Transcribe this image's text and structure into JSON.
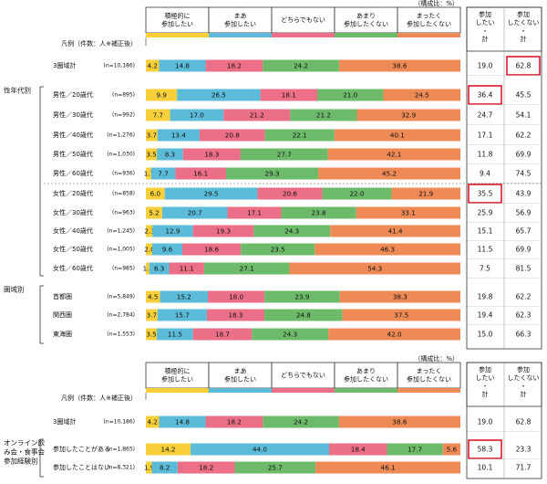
{
  "chart_data": {
    "type": "bar",
    "subtype": "stacked-100-percent-horizontal",
    "unit_note": "（構成比：%）",
    "legend_row_label": "凡例（件数：人※補正後）",
    "legend": [
      {
        "key": "s1",
        "label": [
          "積極的に",
          "参加したい"
        ],
        "color": "#f7cf3b"
      },
      {
        "key": "s2",
        "label": [
          "まあ",
          "参加したい"
        ],
        "color": "#5bbbd8"
      },
      {
        "key": "s3",
        "label": [
          "どちらでもない"
        ],
        "color": "#ec6f88"
      },
      {
        "key": "s4",
        "label": [
          "あまり",
          "参加したくない"
        ],
        "color": "#6dbb6a"
      },
      {
        "key": "s5",
        "label": [
          "まったく",
          "参加したくない"
        ],
        "color": "#ee8a55"
      }
    ],
    "summary_headers": [
      [
        "参加",
        "したい",
        "・",
        "計"
      ],
      [
        "参加",
        "したくない",
        "・",
        "計"
      ]
    ],
    "panels": [
      {
        "groups": [
          {
            "label": "",
            "rows": [
              {
                "label": "3圏域計",
                "n": "(n=10,186)",
                "values": [
                  4.2,
                  14.8,
                  18.2,
                  24.2,
                  38.6
                ],
                "sum": [
                  "19.0",
                  "62.8"
                ],
                "highlight": [
                  false,
                  true
                ]
              }
            ]
          },
          {
            "label": "性年代別",
            "rows": [
              {
                "label": "男性／20歳代",
                "n": "(n=895)",
                "values": [
                  9.9,
                  26.5,
                  18.1,
                  21.0,
                  24.5
                ],
                "sum": [
                  "36.4",
                  "45.5"
                ],
                "highlight": [
                  true,
                  false
                ]
              },
              {
                "label": "男性／30歳代",
                "n": "(n=992)",
                "values": [
                  7.7,
                  17.0,
                  21.2,
                  21.2,
                  32.9
                ],
                "sum": [
                  "24.7",
                  "54.1"
                ],
                "highlight": [
                  false,
                  false
                ]
              },
              {
                "label": "男性／40歳代",
                "n": "(n=1,276)",
                "values": [
                  3.7,
                  13.4,
                  20.8,
                  22.1,
                  40.1
                ],
                "sum": [
                  "17.1",
                  "62.2"
                ],
                "highlight": [
                  false,
                  false
                ]
              },
              {
                "label": "男性／50歳代",
                "n": "(n=1,030)",
                "values": [
                  3.5,
                  8.3,
                  18.3,
                  27.7,
                  42.1
                ],
                "sum": [
                  "11.8",
                  "69.9"
                ],
                "highlight": [
                  false,
                  false
                ]
              },
              {
                "label": "男性／60歳代",
                "n": "(n=936)",
                "values": [
                  1.7,
                  7.7,
                  16.1,
                  29.3,
                  45.2
                ],
                "sum": [
                  "9.4",
                  "74.5"
                ],
                "highlight": [
                  false,
                  false
                ]
              },
              {
                "label": "女性／20歳代",
                "n": "(n=858)",
                "values": [
                  6.0,
                  29.5,
                  20.6,
                  22.0,
                  21.9
                ],
                "sum": [
                  "35.5",
                  "43.9"
                ],
                "highlight": [
                  true,
                  false
                ],
                "dashed_before": true
              },
              {
                "label": "女性／30歳代",
                "n": "(n=963)",
                "values": [
                  5.2,
                  20.7,
                  17.1,
                  23.8,
                  33.1
                ],
                "sum": [
                  "25.9",
                  "56.9"
                ],
                "highlight": [
                  false,
                  false
                ]
              },
              {
                "label": "女性／40歳代",
                "n": "(n=1,245)",
                "values": [
                  2.1,
                  12.9,
                  19.3,
                  24.3,
                  41.4
                ],
                "sum": [
                  "15.1",
                  "65.7"
                ],
                "highlight": [
                  false,
                  false
                ]
              },
              {
                "label": "女性／50歳代",
                "n": "(n=1,005)",
                "values": [
                  2.0,
                  9.6,
                  18.6,
                  23.5,
                  46.3
                ],
                "sum": [
                  "11.5",
                  "69.9"
                ],
                "highlight": [
                  false,
                  false
                ]
              },
              {
                "label": "女性／60歳代",
                "n": "(n=985)",
                "values": [
                  1.1,
                  6.3,
                  11.1,
                  27.1,
                  54.3
                ],
                "sum": [
                  "7.5",
                  "81.5"
                ],
                "highlight": [
                  false,
                  false
                ]
              }
            ]
          },
          {
            "label": "圏域別",
            "rows": [
              {
                "label": "首都圏",
                "n": "(n=5,849)",
                "values": [
                  4.5,
                  15.2,
                  18.0,
                  23.9,
                  38.3
                ],
                "sum": [
                  "19.8",
                  "62.2"
                ],
                "highlight": [
                  false,
                  false
                ]
              },
              {
                "label": "関西圏",
                "n": "(n=2,784)",
                "values": [
                  3.7,
                  15.7,
                  18.3,
                  24.8,
                  37.5
                ],
                "sum": [
                  "19.4",
                  "62.3"
                ],
                "highlight": [
                  false,
                  false
                ]
              },
              {
                "label": "東海圏",
                "n": "(n=1,553)",
                "values": [
                  3.5,
                  11.5,
                  18.7,
                  24.3,
                  42.0
                ],
                "sum": [
                  "15.0",
                  "66.3"
                ],
                "highlight": [
                  false,
                  false
                ]
              }
            ]
          }
        ]
      },
      {
        "groups": [
          {
            "label": "",
            "rows": [
              {
                "label": "3圏域計",
                "n": "(n=10,186)",
                "values": [
                  4.2,
                  14.8,
                  18.2,
                  24.2,
                  38.6
                ],
                "sum": [
                  "19.0",
                  "62.8"
                ],
                "highlight": [
                  false,
                  false
                ]
              }
            ]
          },
          {
            "label": "オンライン飲み会・食事会参加経験別",
            "label_lines": [
              "オンライン飲",
              "み会・食事会",
              "参加経験別"
            ],
            "rows": [
              {
                "label": "参加したことがある",
                "n": "(n=1,865)",
                "values": [
                  14.2,
                  44.0,
                  18.4,
                  17.7,
                  5.6
                ],
                "sum": [
                  "58.3",
                  "23.3"
                ],
                "highlight": [
                  true,
                  false
                ]
              },
              {
                "label": "参加したことはない",
                "n": "(n=8,321)",
                "values": [
                  1.9,
                  8.2,
                  18.2,
                  25.7,
                  46.1
                ],
                "sum": [
                  "10.1",
                  "71.7"
                ],
                "highlight": [
                  false,
                  false
                ]
              }
            ]
          }
        ]
      }
    ],
    "xlim": [
      0,
      100
    ]
  }
}
